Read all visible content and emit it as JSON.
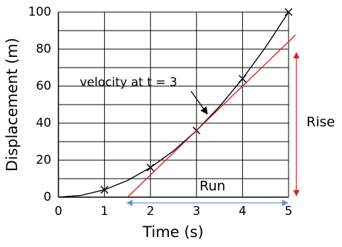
{
  "chart_data": {
    "type": "line",
    "x_label": "Time (s)",
    "y_label": "Displacement (m)",
    "xlim": [
      0,
      5
    ],
    "ylim": [
      0,
      100
    ],
    "xticks": [
      0,
      1,
      2,
      3,
      4,
      5
    ],
    "yticks": [
      0,
      20,
      40,
      60,
      80,
      100
    ],
    "ygrid": [
      0,
      10,
      20,
      30,
      40,
      50,
      60,
      70,
      80,
      90,
      100
    ],
    "grid": true,
    "series": [
      {
        "color": "#000000",
        "marker": "none",
        "x": [
          0,
          0.5,
          1,
          1.5,
          2,
          2.5,
          3,
          3.5,
          4,
          4.5,
          5
        ],
        "values": [
          0,
          1,
          4,
          9,
          16,
          25,
          36,
          49,
          64,
          81,
          100
        ]
      },
      {
        "color": "#000000",
        "marker": "x",
        "x": [
          1,
          2,
          3,
          4,
          5
        ],
        "values": [
          4,
          16,
          36,
          64,
          100
        ]
      },
      {
        "color": "#e0201b",
        "marker": "none",
        "x": [
          1.5,
          5.15
        ],
        "values": [
          0,
          87.6
        ]
      }
    ],
    "annotations": [
      {
        "text": "velocity at t = 3",
        "color": "#e0201b"
      },
      {
        "text": "Rise",
        "color": "#e0201b"
      },
      {
        "text": "Run",
        "color": "#6a8fd8"
      }
    ]
  }
}
